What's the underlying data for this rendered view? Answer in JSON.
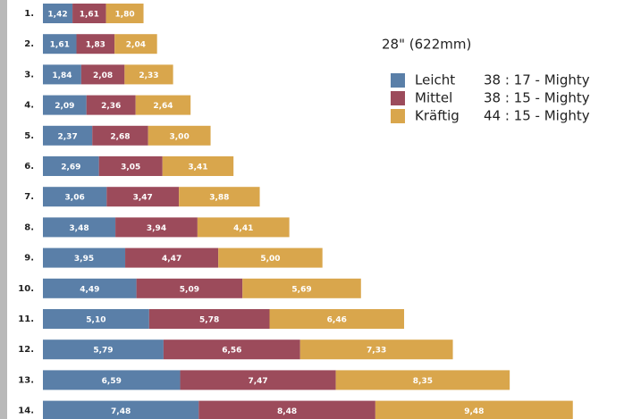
{
  "chart_data": {
    "type": "stacked_bar_horizontal",
    "title": "28\" (622mm)",
    "categories": [
      "1.",
      "2.",
      "3.",
      "4.",
      "5.",
      "6.",
      "7.",
      "8.",
      "9.",
      "10.",
      "11.",
      "12.",
      "13.",
      "14."
    ],
    "series": [
      {
        "name": "Leicht",
        "gearing": "38 : 17 - Mighty",
        "color": "#5a7fa8",
        "values": [
          1.42,
          1.61,
          1.84,
          2.09,
          2.37,
          2.69,
          3.06,
          3.48,
          3.95,
          4.49,
          5.1,
          5.79,
          6.59,
          7.48
        ],
        "value_labels": [
          "1,42",
          "1,61",
          "1,84",
          "2,09",
          "2,37",
          "2,69",
          "3,06",
          "3,48",
          "3,95",
          "4,49",
          "5,10",
          "5,79",
          "6,59",
          "7,48"
        ]
      },
      {
        "name": "Mittel",
        "gearing": "38 : 15 - Mighty",
        "color": "#9c4b5b",
        "values": [
          1.61,
          1.83,
          2.08,
          2.36,
          2.68,
          3.05,
          3.47,
          3.94,
          4.47,
          5.09,
          5.78,
          6.56,
          7.47,
          8.48
        ],
        "value_labels": [
          "1,61",
          "1,83",
          "2,08",
          "2,36",
          "2,68",
          "3,05",
          "3,47",
          "3,94",
          "4,47",
          "5,09",
          "5,78",
          "6,56",
          "7,47",
          "8,48"
        ]
      },
      {
        "name": "Kräftig",
        "gearing": "44 : 15 - Mighty",
        "color": "#d9a64c",
        "values": [
          1.8,
          2.04,
          2.33,
          2.64,
          3.0,
          3.41,
          3.88,
          4.41,
          5.0,
          5.69,
          6.46,
          7.33,
          8.35,
          9.48
        ],
        "value_labels": [
          "1,80",
          "2,04",
          "2,33",
          "2,64",
          "3,00",
          "3,41",
          "3,88",
          "4,41",
          "5,00",
          "5,69",
          "6,46",
          "7,33",
          "8,35",
          "9,48"
        ]
      }
    ]
  }
}
